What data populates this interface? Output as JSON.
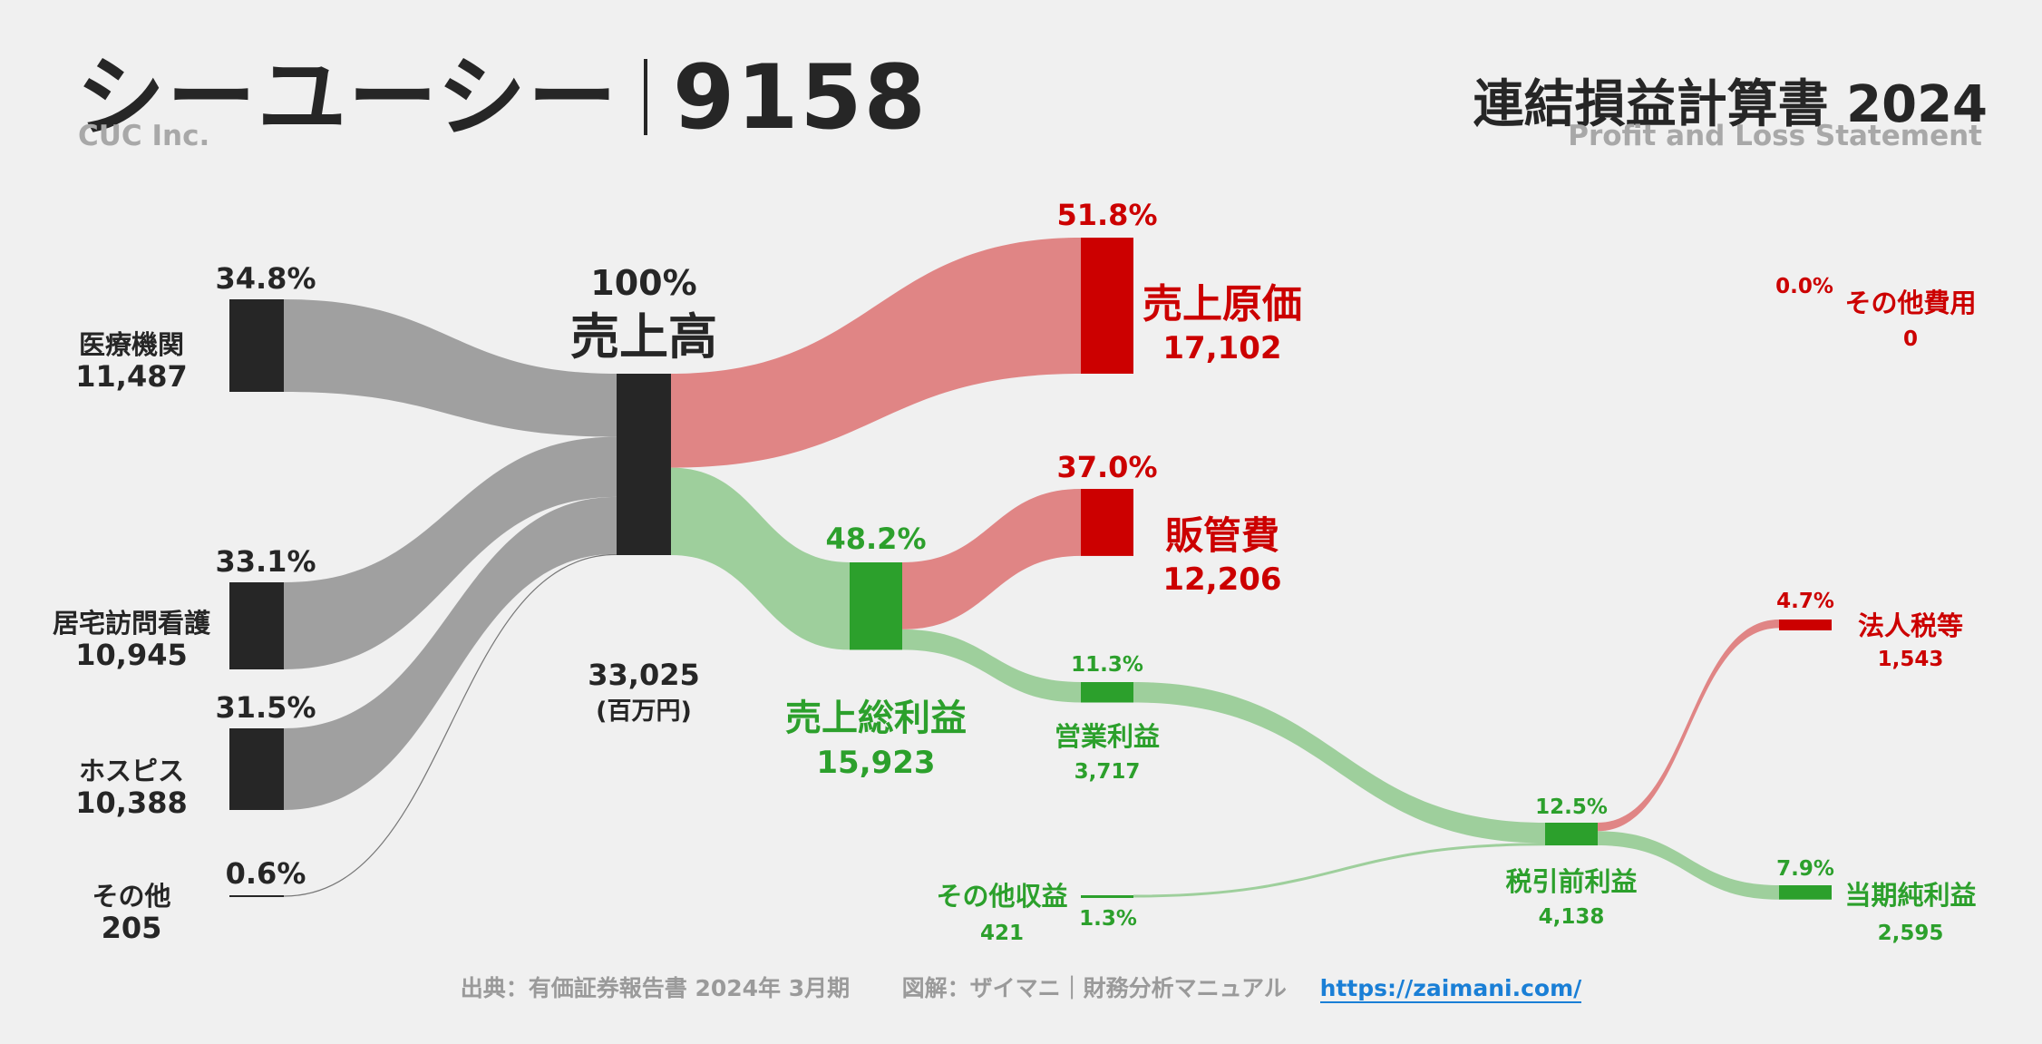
{
  "header": {
    "company": "シーユーシー",
    "code": "9158",
    "company_en": "CUC Inc.",
    "statement": "連結損益計算書 2024",
    "statement_en": "Profit and Loss Statement"
  },
  "footer": {
    "source": "出典：有価証券報告書 2024年 3月期",
    "credit": "図解：ザイマニ｜財務分析マニュアル",
    "url": "https://zaimani.com/"
  },
  "colors": {
    "dark": "#262626",
    "gray_flow": "#a0a0a0",
    "red": "#cc0000",
    "red_flow": "#e08585",
    "green": "#2ca02c",
    "green_flow": "#9ecf9c"
  },
  "chart_data": {
    "type": "sankey",
    "unit": "(百万円)",
    "segments": [
      {
        "name": "医療機関",
        "value": 11487,
        "pct": "34.8%"
      },
      {
        "name": "居宅訪問看護",
        "value": 10945,
        "pct": "33.1%"
      },
      {
        "name": "ホスピス",
        "value": 10388,
        "pct": "31.5%"
      },
      {
        "name": "その他",
        "value": 205,
        "pct": "0.6%"
      }
    ],
    "revenue": {
      "name": "売上高",
      "value": 33025,
      "pct": "100%"
    },
    "cost_of_sales": {
      "name": "売上原価",
      "value": 17102,
      "pct": "51.8%"
    },
    "gross_profit": {
      "name": "売上総利益",
      "value": 15923,
      "pct": "48.2%"
    },
    "sga": {
      "name": "販管費",
      "value": 12206,
      "pct": "37.0%"
    },
    "operating_profit": {
      "name": "営業利益",
      "value": 3717,
      "pct": "11.3%"
    },
    "other_income": {
      "name": "その他収益",
      "value": 421,
      "pct": "1.3%"
    },
    "other_expense": {
      "name": "その他費用",
      "value": 0,
      "pct": "0.0%"
    },
    "pretax_profit": {
      "name": "税引前利益",
      "value": 4138,
      "pct": "12.5%"
    },
    "tax": {
      "name": "法人税等",
      "value": 1543,
      "pct": "4.7%"
    },
    "net_profit": {
      "name": "当期純利益",
      "value": 2595,
      "pct": "7.9%"
    }
  }
}
